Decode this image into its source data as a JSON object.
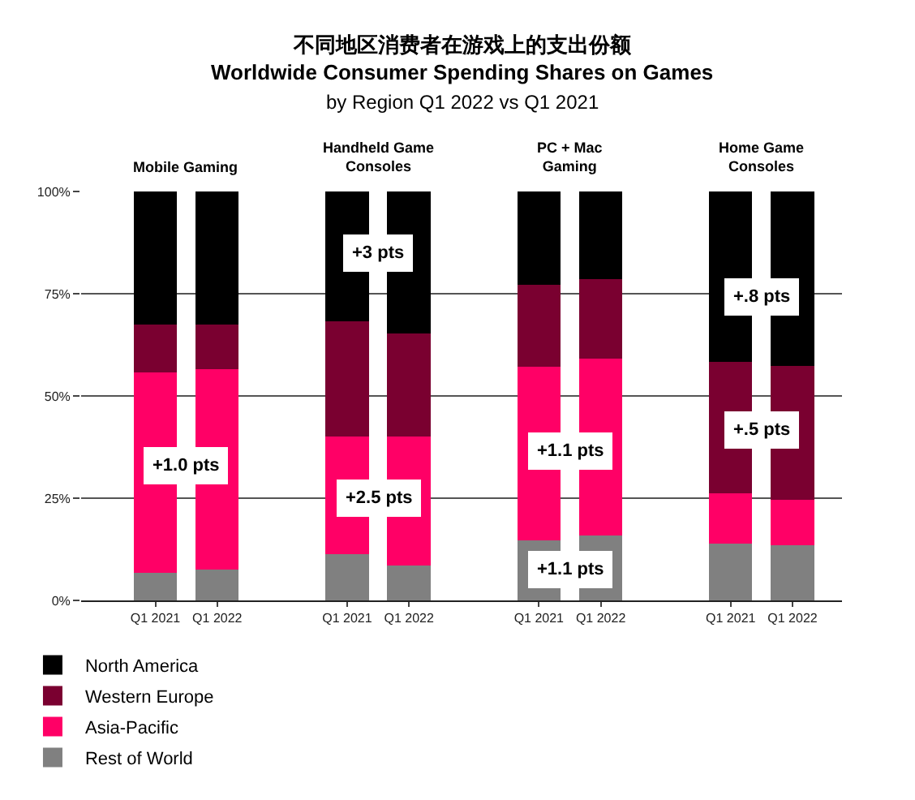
{
  "chart_data": {
    "type": "bar",
    "title": "不同地区消费者在游戏上的支出份额\nWorldwide Consumer Spending Shares on Games",
    "subtitle": "by Region Q1 2022 vs Q1 2021",
    "stacked": true,
    "categories": [
      "Q1 2021",
      "Q1 2022",
      "Q1 2021",
      "Q1 2022",
      "Q1 2021",
      "Q1 2022",
      "Q1 2021",
      "Q1 2022"
    ],
    "ylim": [
      0,
      100
    ],
    "yticks": [
      {
        "value": 0,
        "label": "0%"
      },
      {
        "value": 25,
        "label": "25%"
      },
      {
        "value": 50,
        "label": "50%"
      },
      {
        "value": 75,
        "label": "75%"
      },
      {
        "value": 100,
        "label": "100%"
      }
    ],
    "grid": "y",
    "legend": "bottom left",
    "series": [
      {
        "name": "Rest of World",
        "color": "#808080",
        "values": [
          6.8,
          7.5,
          11.3,
          8.5,
          14.6,
          15.8,
          13.8,
          13.4
        ]
      },
      {
        "name": "Asia-Pacific",
        "color": "#ff0066",
        "values": [
          48.9,
          49.1,
          28.7,
          31.5,
          42.6,
          43.4,
          12.3,
          11.3
        ]
      },
      {
        "name": "Western Europe",
        "color": "#7a0030",
        "values": [
          11.7,
          10.8,
          28.3,
          25.3,
          20,
          19.3,
          32.2,
          32.7
        ]
      },
      {
        "name": "North America",
        "color": "#000000",
        "values": [
          32.6,
          32.6,
          31.7,
          34.7,
          22.8,
          21.5,
          41.7,
          42.6
        ]
      }
    ],
    "annotations": [
      "Mobile Gaming",
      "Handheld Game\nConsoles",
      "PC + Mac\nGaming",
      "Home Game\nConsoles",
      "+1.0 pts",
      "+3 pts",
      "+2.5 pts",
      "+1.1 pts",
      "+1.1 pts",
      "+.8 pts",
      "+.5 pts"
    ]
  }
}
